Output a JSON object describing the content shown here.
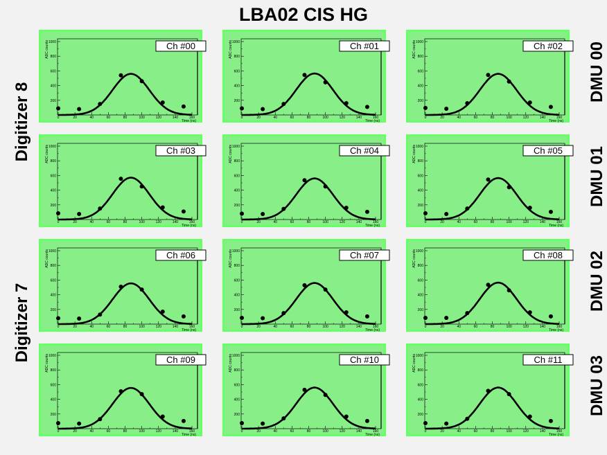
{
  "title": "LBA02 CIS HG",
  "left_labels": [
    "Digitizer 8",
    "Digitizer 7"
  ],
  "right_labels": [
    "DMU 00",
    "DMU 01",
    "DMU 02",
    "DMU 03"
  ],
  "colors": {
    "plot_fill": "#88ee88",
    "frame_outer": "#66ff66",
    "curve": "#000000",
    "points": "#000000"
  },
  "chart_data": [
    {
      "type": "scatter",
      "legend": "Ch #00",
      "xlabel": "Time (ns)",
      "ylabel": "ADC counts",
      "xlim": [
        0,
        160
      ],
      "ylim": [
        0,
        1000
      ],
      "x_ticks": [
        0,
        20,
        40,
        60,
        80,
        100,
        120,
        140,
        160
      ],
      "y_ticks": [
        200,
        400,
        600,
        800,
        1000
      ],
      "points": {
        "x": [
          0,
          25,
          50,
          75,
          100,
          125,
          150
        ],
        "y": [
          90,
          80,
          150,
          540,
          460,
          170,
          115
        ]
      },
      "fit": {
        "amplitude": 560,
        "mean": 87,
        "sigma": 22
      }
    },
    {
      "type": "scatter",
      "legend": "Ch #01",
      "xlabel": "Time (ns)",
      "ylabel": "ADC counts",
      "xlim": [
        0,
        160
      ],
      "ylim": [
        0,
        1000
      ],
      "x_ticks": [
        0,
        20,
        40,
        60,
        80,
        100,
        120,
        140,
        160
      ],
      "y_ticks": [
        200,
        400,
        600,
        800,
        1000
      ],
      "points": {
        "x": [
          0,
          25,
          50,
          75,
          100,
          125,
          150
        ],
        "y": [
          90,
          80,
          150,
          545,
          445,
          160,
          110
        ]
      },
      "fit": {
        "amplitude": 565,
        "mean": 87,
        "sigma": 22
      }
    },
    {
      "type": "scatter",
      "legend": "Ch #02",
      "xlabel": "Time (ns)",
      "ylabel": "ADC counts",
      "xlim": [
        0,
        160
      ],
      "ylim": [
        0,
        1000
      ],
      "x_ticks": [
        0,
        20,
        40,
        60,
        80,
        100,
        120,
        140,
        160
      ],
      "y_ticks": [
        200,
        400,
        600,
        800,
        1000
      ],
      "points": {
        "x": [
          0,
          25,
          50,
          75,
          100,
          125,
          150
        ],
        "y": [
          95,
          85,
          160,
          545,
          455,
          170,
          110
        ]
      },
      "fit": {
        "amplitude": 560,
        "mean": 87,
        "sigma": 22
      }
    },
    {
      "type": "scatter",
      "legend": "Ch #03",
      "xlabel": "Time (ns)",
      "ylabel": "ADC counts",
      "xlim": [
        0,
        160
      ],
      "ylim": [
        0,
        1000
      ],
      "x_ticks": [
        0,
        20,
        40,
        60,
        80,
        100,
        120,
        140,
        160
      ],
      "y_ticks": [
        200,
        400,
        600,
        800,
        1000
      ],
      "points": {
        "x": [
          0,
          25,
          50,
          75,
          100,
          125,
          150
        ],
        "y": [
          85,
          75,
          150,
          555,
          450,
          165,
          110
        ]
      },
      "fit": {
        "amplitude": 570,
        "mean": 87,
        "sigma": 22
      }
    },
    {
      "type": "scatter",
      "legend": "Ch #04",
      "xlabel": "Time (ns)",
      "ylabel": "ADC counts",
      "xlim": [
        0,
        160
      ],
      "ylim": [
        0,
        1000
      ],
      "x_ticks": [
        0,
        20,
        40,
        60,
        80,
        100,
        120,
        140,
        160
      ],
      "y_ticks": [
        200,
        400,
        600,
        800,
        1000
      ],
      "points": {
        "x": [
          0,
          25,
          50,
          75,
          100,
          125,
          150
        ],
        "y": [
          80,
          75,
          145,
          535,
          450,
          160,
          105
        ]
      },
      "fit": {
        "amplitude": 560,
        "mean": 87,
        "sigma": 22
      }
    },
    {
      "type": "scatter",
      "legend": "Ch #05",
      "xlabel": "Time (ns)",
      "ylabel": "ADC counts",
      "xlim": [
        0,
        160
      ],
      "ylim": [
        0,
        1000
      ],
      "x_ticks": [
        0,
        20,
        40,
        60,
        80,
        100,
        120,
        140,
        160
      ],
      "y_ticks": [
        200,
        400,
        600,
        800,
        1000
      ],
      "points": {
        "x": [
          0,
          25,
          50,
          75,
          100,
          125,
          150
        ],
        "y": [
          85,
          75,
          150,
          545,
          440,
          160,
          105
        ]
      },
      "fit": {
        "amplitude": 565,
        "mean": 87,
        "sigma": 22
      }
    },
    {
      "type": "scatter",
      "legend": "Ch #06",
      "xlabel": "Time (ns)",
      "ylabel": "ADC counts",
      "xlim": [
        0,
        160
      ],
      "ylim": [
        0,
        1000
      ],
      "x_ticks": [
        0,
        20,
        40,
        60,
        80,
        100,
        120,
        140,
        160
      ],
      "y_ticks": [
        200,
        400,
        600,
        800,
        1000
      ],
      "points": {
        "x": [
          0,
          25,
          50,
          75,
          100,
          125,
          150
        ],
        "y": [
          80,
          75,
          130,
          510,
          470,
          170,
          105
        ]
      },
      "fit": {
        "amplitude": 555,
        "mean": 87,
        "sigma": 22
      }
    },
    {
      "type": "scatter",
      "legend": "Ch #07",
      "xlabel": "Time (ns)",
      "ylabel": "ADC counts",
      "xlim": [
        0,
        160
      ],
      "ylim": [
        0,
        1000
      ],
      "x_ticks": [
        0,
        20,
        40,
        60,
        80,
        100,
        120,
        140,
        160
      ],
      "y_ticks": [
        200,
        400,
        600,
        800,
        1000
      ],
      "points": {
        "x": [
          0,
          25,
          50,
          75,
          100,
          125,
          150
        ],
        "y": [
          85,
          80,
          150,
          530,
          470,
          160,
          105
        ]
      },
      "fit": {
        "amplitude": 560,
        "mean": 87,
        "sigma": 22
      }
    },
    {
      "type": "scatter",
      "legend": "Ch #08",
      "xlabel": "Time (ns)",
      "ylabel": "ADC counts",
      "xlim": [
        0,
        160
      ],
      "ylim": [
        0,
        1000
      ],
      "x_ticks": [
        0,
        20,
        40,
        60,
        80,
        100,
        120,
        140,
        160
      ],
      "y_ticks": [
        200,
        400,
        600,
        800,
        1000
      ],
      "points": {
        "x": [
          0,
          25,
          50,
          75,
          100,
          125,
          150
        ],
        "y": [
          85,
          85,
          150,
          535,
          460,
          160,
          105
        ]
      },
      "fit": {
        "amplitude": 565,
        "mean": 87,
        "sigma": 22
      }
    },
    {
      "type": "scatter",
      "legend": "Ch #09",
      "xlabel": "Time (ns)",
      "ylabel": "ADC counts",
      "xlim": [
        0,
        160
      ],
      "ylim": [
        0,
        1000
      ],
      "x_ticks": [
        0,
        20,
        40,
        60,
        80,
        100,
        120,
        140,
        160
      ],
      "y_ticks": [
        200,
        400,
        600,
        800,
        1000
      ],
      "points": {
        "x": [
          0,
          25,
          50,
          75,
          100,
          125,
          150
        ],
        "y": [
          75,
          70,
          130,
          510,
          470,
          165,
          105
        ]
      },
      "fit": {
        "amplitude": 555,
        "mean": 87,
        "sigma": 22
      }
    },
    {
      "type": "scatter",
      "legend": "Ch #10",
      "xlabel": "Time (ns)",
      "ylabel": "ADC counts",
      "xlim": [
        0,
        160
      ],
      "ylim": [
        0,
        1000
      ],
      "x_ticks": [
        0,
        20,
        40,
        60,
        80,
        100,
        120,
        140,
        160
      ],
      "y_ticks": [
        200,
        400,
        600,
        800,
        1000
      ],
      "points": {
        "x": [
          0,
          25,
          50,
          75,
          100,
          125,
          150
        ],
        "y": [
          75,
          70,
          140,
          530,
          460,
          165,
          105
        ]
      },
      "fit": {
        "amplitude": 560,
        "mean": 87,
        "sigma": 22
      }
    },
    {
      "type": "scatter",
      "legend": "Ch #11",
      "xlabel": "Time (ns)",
      "ylabel": "ADC counts",
      "xlim": [
        0,
        160
      ],
      "ylim": [
        0,
        1000
      ],
      "x_ticks": [
        0,
        20,
        40,
        60,
        80,
        100,
        120,
        140,
        160
      ],
      "y_ticks": [
        200,
        400,
        600,
        800,
        1000
      ],
      "points": {
        "x": [
          0,
          25,
          50,
          75,
          100,
          125,
          150
        ],
        "y": [
          75,
          70,
          135,
          515,
          470,
          165,
          105
        ]
      },
      "fit": {
        "amplitude": 560,
        "mean": 87,
        "sigma": 22
      }
    }
  ]
}
